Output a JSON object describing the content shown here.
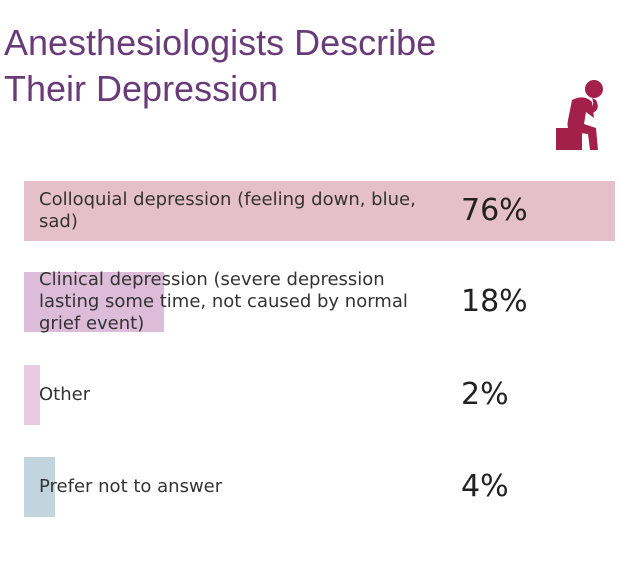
{
  "chart_data": {
    "type": "bar",
    "orientation": "horizontal",
    "title": "Anesthesiologists Describe Their Depression",
    "categories": [
      "Colloquial depression (feeling down, blue, sad)",
      "Clinical depression (severe depression lasting some time, not caused by normal grief event)",
      "Other",
      "Prefer not to answer"
    ],
    "values": [
      76,
      18,
      2,
      4
    ],
    "value_labels": [
      "76%",
      "18%",
      "2%",
      "4%"
    ],
    "colors": [
      "#e5bfca",
      "#dcbcd9",
      "#e8cbe0",
      "#c2d5de"
    ]
  }
}
